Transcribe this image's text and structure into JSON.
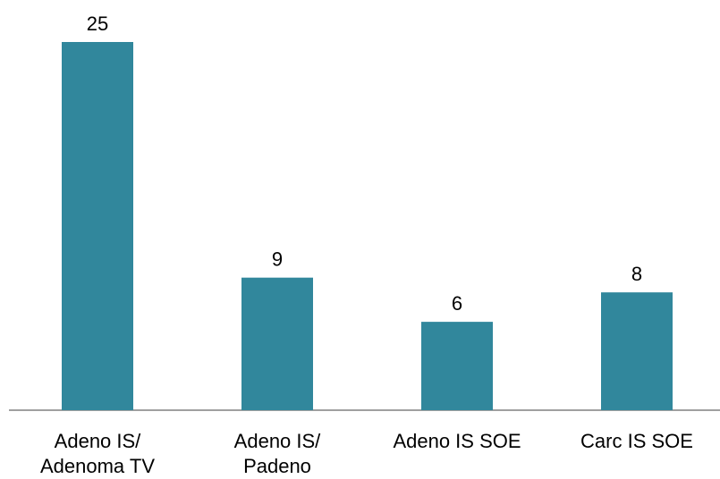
{
  "chart_data": {
    "type": "bar",
    "categories": [
      [
        "Adeno IS/",
        "Adenoma TV"
      ],
      [
        "Adeno IS/",
        "Padeno"
      ],
      [
        "Adeno IS SOE"
      ],
      [
        "Carc IS SOE"
      ]
    ],
    "values": [
      25,
      9,
      6,
      8
    ],
    "data_labels": [
      "25",
      "9",
      "6",
      "8"
    ],
    "title": "",
    "xlabel": "",
    "ylabel": "",
    "ylim": [
      0,
      25
    ],
    "grid": false,
    "legend": "none",
    "colors": {
      "bar": "#31879c",
      "axis": "#808080",
      "text": "#000000"
    }
  }
}
